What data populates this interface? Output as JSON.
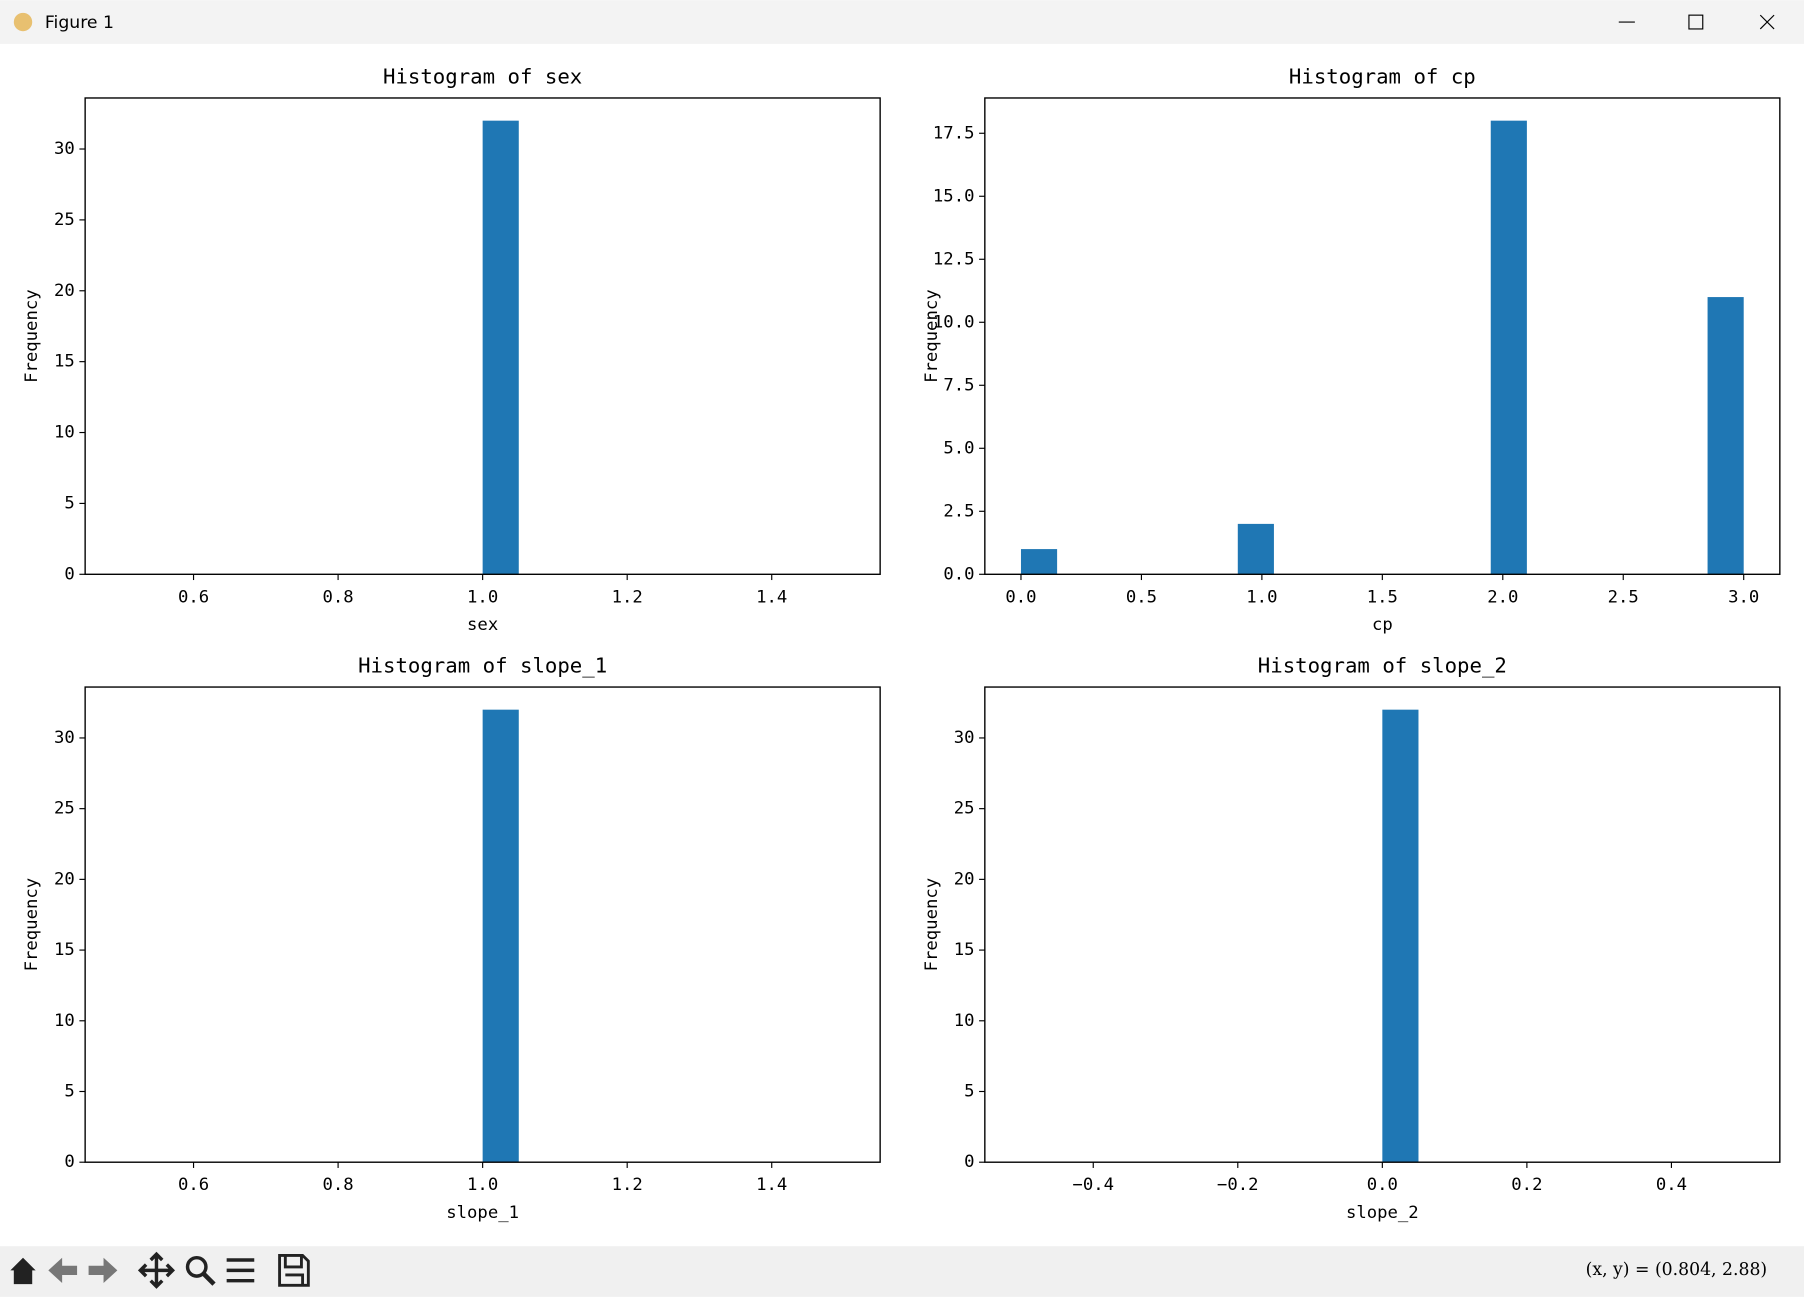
{
  "window": {
    "title": "Figure 1",
    "status": "(x, y) = (0.804, 2.88)"
  },
  "chart_data": [
    {
      "type": "histogram",
      "title": "Histogram of sex",
      "x_label": "sex",
      "y_label": "Frequency",
      "color": "#1f77b4",
      "bins": [
        0.5,
        0.55,
        0.6,
        0.65,
        0.7,
        0.75,
        0.8,
        0.85,
        0.9,
        0.95,
        1.0,
        1.05,
        1.1,
        1.15,
        1.2,
        1.25,
        1.3,
        1.35,
        1.4,
        1.45,
        1.5
      ],
      "values": [
        0,
        0,
        0,
        0,
        0,
        0,
        0,
        0,
        0,
        0,
        32,
        0,
        0,
        0,
        0,
        0,
        0,
        0,
        0,
        0
      ],
      "xlim": [
        0.45,
        1.55
      ],
      "xticks": [
        0.6,
        0.8,
        {
          "value": 1.0,
          "label": "1.0"
        },
        1.2,
        1.4
      ],
      "ylim": [
        0,
        33.6
      ],
      "yticks": [
        0,
        5,
        10,
        15,
        20,
        25,
        30
      ],
      "grid": false
    },
    {
      "type": "histogram",
      "title": "Histogram of cp",
      "x_label": "cp",
      "y_label": "Frequency",
      "color": "#1f77b4",
      "bins": [
        0,
        0.15,
        0.3,
        0.45,
        0.6,
        0.75,
        0.9,
        1.05,
        1.2,
        1.35,
        1.5,
        1.65,
        1.8,
        1.95,
        2.1,
        2.25,
        2.4,
        2.55,
        2.7,
        2.85,
        3.0
      ],
      "values": [
        1,
        0,
        0,
        0,
        0,
        0,
        2,
        0,
        0,
        0,
        0,
        0,
        0,
        18,
        0,
        0,
        0,
        0,
        0,
        11
      ],
      "xlim": [
        -0.15,
        3.15
      ],
      "xticks": [
        {
          "value": 0,
          "label": "0.0"
        },
        0.5,
        {
          "value": 1.0,
          "label": "1.0"
        },
        1.5,
        {
          "value": 2.0,
          "label": "2.0"
        },
        2.5,
        {
          "value": 3.0,
          "label": "3.0"
        }
      ],
      "ylim": [
        0,
        18.9
      ],
      "yticks": [
        {
          "value": 0,
          "label": "0.0"
        },
        2.5,
        {
          "value": 5,
          "label": "5.0"
        },
        7.5,
        {
          "value": 10,
          "label": "10.0"
        },
        12.5,
        {
          "value": 15,
          "label": "15.0"
        },
        17.5
      ],
      "grid": false
    },
    {
      "type": "histogram",
      "title": "Histogram of slope_1",
      "x_label": "slope_1",
      "y_label": "Frequency",
      "color": "#1f77b4",
      "bins": [
        0.5,
        0.55,
        0.6,
        0.65,
        0.7,
        0.75,
        0.8,
        0.85,
        0.9,
        0.95,
        1.0,
        1.05,
        1.1,
        1.15,
        1.2,
        1.25,
        1.3,
        1.35,
        1.4,
        1.45,
        1.5
      ],
      "values": [
        0,
        0,
        0,
        0,
        0,
        0,
        0,
        0,
        0,
        0,
        32,
        0,
        0,
        0,
        0,
        0,
        0,
        0,
        0,
        0
      ],
      "xlim": [
        0.45,
        1.55
      ],
      "xticks": [
        0.6,
        0.8,
        {
          "value": 1.0,
          "label": "1.0"
        },
        1.2,
        1.4
      ],
      "ylim": [
        0,
        33.6
      ],
      "yticks": [
        0,
        5,
        10,
        15,
        20,
        25,
        30
      ],
      "grid": false
    },
    {
      "type": "histogram",
      "title": "Histogram of slope_2",
      "x_label": "slope_2",
      "y_label": "Frequency",
      "color": "#1f77b4",
      "bins": [
        -0.5,
        -0.45,
        -0.4,
        -0.35,
        -0.3,
        -0.25,
        -0.2,
        -0.15,
        -0.1,
        -0.05,
        0,
        0.05,
        0.1,
        0.15,
        0.2,
        0.25,
        0.3,
        0.35,
        0.4,
        0.45,
        0.5
      ],
      "values": [
        0,
        0,
        0,
        0,
        0,
        0,
        0,
        0,
        0,
        0,
        32,
        0,
        0,
        0,
        0,
        0,
        0,
        0,
        0,
        0
      ],
      "xlim": [
        -0.55,
        0.55
      ],
      "xticks": [
        {
          "value": -0.4,
          "label": "−0.4"
        },
        {
          "value": -0.2,
          "label": "−0.2"
        },
        {
          "value": 0,
          "label": "0.0"
        },
        0.2,
        0.4
      ],
      "ylim": [
        0,
        33.6
      ],
      "yticks": [
        0,
        5,
        10,
        15,
        20,
        25,
        30
      ],
      "grid": false
    }
  ]
}
